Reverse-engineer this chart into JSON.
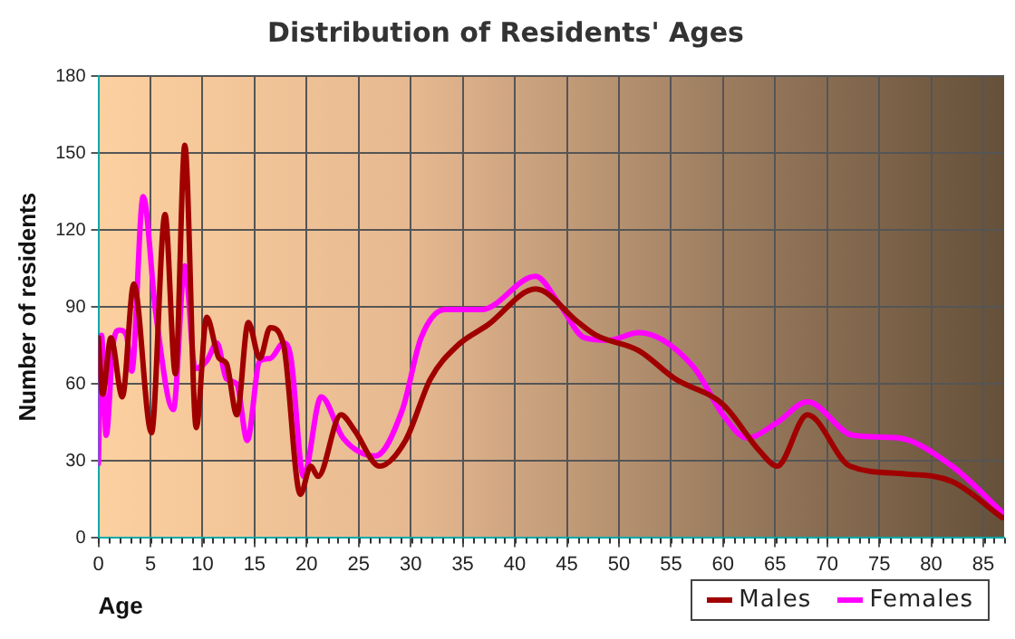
{
  "chart_data": {
    "type": "line",
    "title": "Distribution of Residents' Ages",
    "xlabel": "Age",
    "ylabel": "Number of residents",
    "xlim": [
      0,
      87
    ],
    "xticks": [
      0,
      5,
      10,
      15,
      20,
      25,
      30,
      35,
      40,
      45,
      50,
      55,
      60,
      65,
      70,
      75,
      80,
      85
    ],
    "ylim": [
      0,
      180
    ],
    "yticks": [
      0,
      30,
      60,
      90,
      120,
      150,
      180
    ],
    "grid": true,
    "legend": "bottom right",
    "marker": "none",
    "series": [
      {
        "name": "Males",
        "color": "#a00000",
        "x": [
          0,
          0.4,
          1.2,
          2.3,
          3.4,
          5.1,
          6.4,
          7.4,
          8.3,
          9.4,
          10.4,
          11.6,
          12.3,
          13.3,
          14.4,
          15.5,
          16.5,
          17.8,
          19.4,
          20.4,
          21.1,
          23.3,
          24.6,
          27,
          29.5,
          31.9,
          34.5,
          37.4,
          42,
          46.1,
          47.8,
          51.9,
          55.4,
          60,
          63.5,
          65.2,
          68.1,
          72.2,
          77.4,
          82,
          86.8
        ],
        "values": [
          78,
          56,
          78,
          55,
          99,
          41,
          126,
          64,
          153,
          43,
          86,
          70,
          68,
          48,
          84,
          70,
          82,
          75,
          17,
          28,
          24,
          48,
          42,
          28,
          38,
          62,
          75,
          83,
          97,
          84,
          79,
          73,
          62,
          52,
          34,
          28,
          48,
          28,
          25,
          22,
          8
        ]
      },
      {
        "name": "Females",
        "color": "#ff00ff",
        "x": [
          0,
          0.3,
          0.75,
          1.4,
          2,
          2.7,
          3.2,
          4.3,
          5.5,
          7.2,
          8.3,
          9.3,
          10.4,
          11.4,
          12.3,
          13.3,
          14.3,
          15.5,
          16.5,
          17.8,
          18.5,
          19.7,
          21.4,
          23.5,
          26.6,
          29.2,
          31,
          33.3,
          36.8,
          42,
          44.3,
          46.7,
          49,
          51.9,
          57.1,
          60,
          62.3,
          65.2,
          68.1,
          72.5,
          76.8,
          82,
          86.8
        ],
        "values": [
          29,
          79,
          40,
          75,
          81,
          79,
          65,
          133,
          88,
          50,
          106,
          66,
          69,
          76,
          62,
          60,
          38,
          69,
          70,
          76,
          70,
          24,
          55,
          39,
          32,
          50,
          78,
          89,
          89,
          102,
          91,
          78,
          77,
          80,
          67,
          48,
          39,
          45,
          53,
          40,
          39,
          28,
          10
        ]
      }
    ]
  }
}
